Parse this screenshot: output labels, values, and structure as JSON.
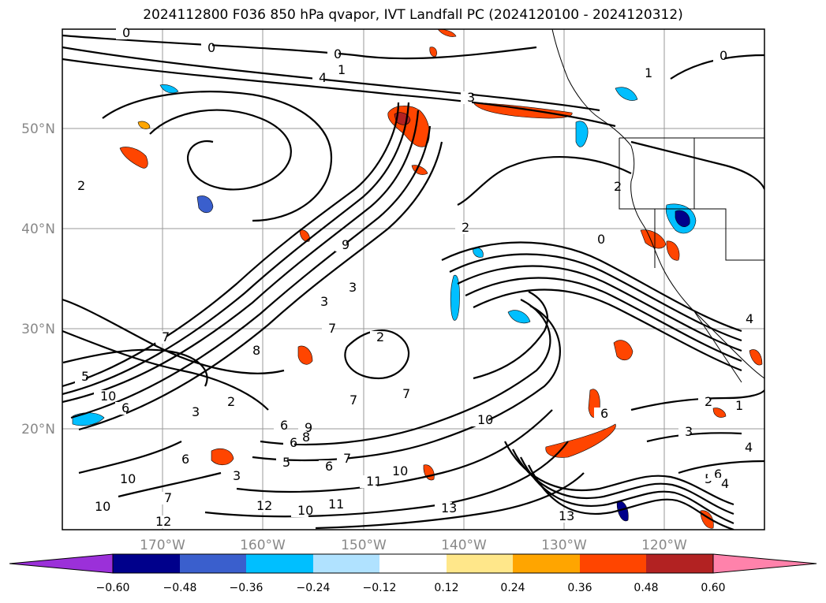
{
  "title": "2024112800 F036 850 hPa qvapor, IVT Landfall PC (2024120100 - 2024120312)",
  "lat_ticks": [
    "50°N",
    "40°N",
    "30°N",
    "20°N"
  ],
  "lon_ticks": [
    "170°W",
    "160°W",
    "150°W",
    "140°W",
    "130°W",
    "120°W"
  ],
  "colorbar": {
    "tick_labels": [
      "−0.60",
      "−0.48",
      "−0.36",
      "−0.24",
      "−0.12",
      "0.12",
      "0.24",
      "0.36",
      "0.48",
      "0.60"
    ],
    "colors": {
      "under": "#9b30d9",
      "bins": [
        "#00008b",
        "#3a5fcd",
        "#00bfff",
        "#b0e2ff",
        "#ffffff",
        "#ffe78a",
        "#ffa500",
        "#ff4500",
        "#b22222",
        "#ff82ab"
      ],
      "over": "#ff82ab"
    }
  },
  "contour_labels": [
    "0",
    "0",
    "0",
    "0",
    "1",
    "4",
    "3",
    "1",
    "2",
    "2",
    "0",
    "2",
    "9",
    "3",
    "3",
    "8",
    "7",
    "7",
    "7",
    "5",
    "10",
    "6",
    "3",
    "2",
    "7",
    "2",
    "6",
    "6",
    "9",
    "10",
    "8",
    "6",
    "5",
    "3",
    "6",
    "7",
    "10",
    "10",
    "11",
    "12",
    "13",
    "13",
    "11",
    "10",
    "12",
    "10",
    "2",
    "1",
    "3",
    "4",
    "5",
    "6",
    "4",
    "4",
    "6",
    "7"
  ]
}
